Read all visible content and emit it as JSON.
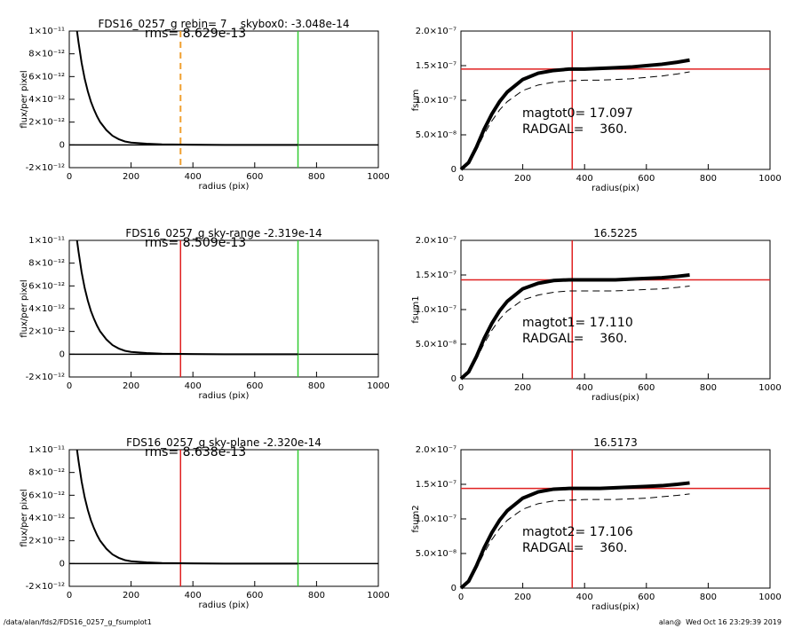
{
  "chart_data": [
    {
      "type": "scatter",
      "title": "FDS16_0257_g rebin= 7    skybox0: -3.048e-14",
      "annotations": [
        "rms= 8.629e-13"
      ],
      "xlabel": "radius (pix)",
      "ylabel": "flux/per pixel",
      "xlim": [
        0,
        1000
      ],
      "ylim": [
        -2e-12,
        1e-11
      ],
      "xticks": [
        0,
        200,
        400,
        600,
        800,
        1000
      ],
      "yticks": [
        {
          "value": -2e-12,
          "label": "-2×10⁻¹²"
        },
        0,
        {
          "value": 2e-12,
          "label": "2×10⁻¹²"
        },
        {
          "value": 4e-12,
          "label": "4×10⁻¹²"
        },
        {
          "value": 6e-12,
          "label": "6×10⁻¹²"
        },
        {
          "value": 8e-12,
          "label": "8×10⁻¹²"
        },
        {
          "value": 1e-11,
          "label": "1×10⁻¹¹"
        }
      ],
      "series": [
        {
          "color": "#000000",
          "x": [
            25,
            30,
            40,
            50,
            60,
            70,
            80,
            90,
            100,
            120,
            140,
            160,
            180,
            200,
            250,
            300,
            400,
            500,
            600,
            700,
            740
          ],
          "values": [
            1e-11,
            9e-12,
            7.2e-12,
            5.8e-12,
            4.7e-12,
            3.8e-12,
            3.1e-12,
            2.5e-12,
            2e-12,
            1.3e-12,
            8e-13,
            5e-13,
            3e-13,
            2e-13,
            1e-13,
            5e-14,
            2e-14,
            0,
            0,
            0,
            0
          ]
        }
      ],
      "vlines": [
        {
          "value": 360,
          "color": "#f0a030",
          "dashed": true
        },
        {
          "value": 740,
          "color": "#33cc33",
          "dashed": false
        }
      ]
    },
    {
      "type": "line",
      "xlabel": "radius(pix)",
      "ylabel": "fsum",
      "annotations": [
        "magtot0= 17.097",
        "RADGAL=    360."
      ],
      "xlim": [
        0,
        1000
      ],
      "ylim": [
        0,
        2e-07
      ],
      "xticks": [
        0,
        200,
        400,
        600,
        800,
        1000
      ],
      "yticks": [
        0,
        {
          "value": 5e-08,
          "label": "5.0×10⁻⁸"
        },
        {
          "value": 1e-07,
          "label": "1.0×10⁻⁷"
        },
        {
          "value": 1.5e-07,
          "label": "1.5×10⁻⁷"
        },
        {
          "value": 2e-07,
          "label": "2.0×10⁻⁷"
        }
      ],
      "series": [
        {
          "color": "#000000",
          "dashed": false,
          "x": [
            0,
            25,
            50,
            75,
            100,
            125,
            150,
            200,
            250,
            300,
            350,
            400,
            450,
            500,
            550,
            600,
            650,
            700,
            740
          ],
          "values": [
            0,
            1e-08,
            3.2e-08,
            5.8e-08,
            8e-08,
            9.8e-08,
            1.12e-07,
            1.3e-07,
            1.39e-07,
            1.43e-07,
            1.45e-07,
            1.45e-07,
            1.46e-07,
            1.47e-07,
            1.48e-07,
            1.5e-07,
            1.52e-07,
            1.55e-07,
            1.58e-07
          ]
        },
        {
          "color": "#000000",
          "dashed": true,
          "x": [
            0,
            25,
            50,
            75,
            100,
            125,
            150,
            200,
            250,
            300,
            350,
            400,
            450,
            500,
            550,
            600,
            650,
            700,
            740
          ],
          "values": [
            0,
            8e-09,
            2.8e-08,
            5.1e-08,
            7e-08,
            8.6e-08,
            9.8e-08,
            1.14e-07,
            1.22e-07,
            1.26e-07,
            1.28e-07,
            1.29e-07,
            1.29e-07,
            1.3e-07,
            1.31e-07,
            1.33e-07,
            1.35e-07,
            1.38e-07,
            1.41e-07
          ]
        }
      ],
      "hlines": [
        {
          "value": 1.45e-07,
          "color": "#e02020"
        }
      ],
      "vlines": [
        {
          "value": 360,
          "color": "#e02020",
          "dashed": false
        }
      ]
    },
    {
      "type": "scatter",
      "title": "FDS16_0257_g sky-range -2.319e-14",
      "annotations": [
        "rms= 8.509e-13"
      ],
      "xlabel": "radius (pix)",
      "ylabel": "flux/per pixel",
      "xlim": [
        0,
        1000
      ],
      "ylim": [
        -2e-12,
        1e-11
      ],
      "xticks": [
        0,
        200,
        400,
        600,
        800,
        1000
      ],
      "yticks": [
        {
          "value": -2e-12,
          "label": "-2×10⁻¹²"
        },
        0,
        {
          "value": 2e-12,
          "label": "2×10⁻¹²"
        },
        {
          "value": 4e-12,
          "label": "4×10⁻¹²"
        },
        {
          "value": 6e-12,
          "label": "6×10⁻¹²"
        },
        {
          "value": 8e-12,
          "label": "8×10⁻¹²"
        },
        {
          "value": 1e-11,
          "label": "1×10⁻¹¹"
        }
      ],
      "series": [
        {
          "color": "#000000",
          "x": [
            25,
            30,
            40,
            50,
            60,
            70,
            80,
            90,
            100,
            120,
            140,
            160,
            180,
            200,
            250,
            300,
            400,
            500,
            600,
            700,
            740
          ],
          "values": [
            1e-11,
            9e-12,
            7.2e-12,
            5.8e-12,
            4.7e-12,
            3.8e-12,
            3.1e-12,
            2.5e-12,
            2e-12,
            1.3e-12,
            8e-13,
            5e-13,
            3e-13,
            2e-13,
            1e-13,
            5e-14,
            2e-14,
            0,
            0,
            0,
            0
          ]
        }
      ],
      "vlines": [
        {
          "value": 360,
          "color": "#e02020",
          "dashed": false
        },
        {
          "value": 740,
          "color": "#33cc33",
          "dashed": false
        }
      ]
    },
    {
      "type": "line",
      "title": "16.5225",
      "xlabel": "radius(pix)",
      "ylabel": "fsum1",
      "annotations": [
        "magtot1= 17.110",
        "RADGAL=    360."
      ],
      "xlim": [
        0,
        1000
      ],
      "ylim": [
        0,
        2e-07
      ],
      "xticks": [
        0,
        200,
        400,
        600,
        800,
        1000
      ],
      "yticks": [
        0,
        {
          "value": 5e-08,
          "label": "5.0×10⁻⁸"
        },
        {
          "value": 1e-07,
          "label": "1.0×10⁻⁷"
        },
        {
          "value": 1.5e-07,
          "label": "1.5×10⁻⁷"
        },
        {
          "value": 2e-07,
          "label": "2.0×10⁻⁷"
        }
      ],
      "series": [
        {
          "color": "#000000",
          "dashed": false,
          "x": [
            0,
            25,
            50,
            75,
            100,
            125,
            150,
            200,
            250,
            300,
            350,
            400,
            450,
            500,
            550,
            600,
            650,
            700,
            740
          ],
          "values": [
            0,
            1e-08,
            3.2e-08,
            5.8e-08,
            8e-08,
            9.8e-08,
            1.12e-07,
            1.3e-07,
            1.38e-07,
            1.42e-07,
            1.43e-07,
            1.43e-07,
            1.43e-07,
            1.43e-07,
            1.44e-07,
            1.45e-07,
            1.46e-07,
            1.48e-07,
            1.5e-07
          ]
        },
        {
          "color": "#000000",
          "dashed": true,
          "x": [
            0,
            25,
            50,
            75,
            100,
            125,
            150,
            200,
            250,
            300,
            350,
            400,
            450,
            500,
            550,
            600,
            650,
            700,
            740
          ],
          "values": [
            0,
            8e-09,
            2.8e-08,
            5.1e-08,
            7e-08,
            8.6e-08,
            9.8e-08,
            1.14e-07,
            1.21e-07,
            1.25e-07,
            1.27e-07,
            1.27e-07,
            1.27e-07,
            1.27e-07,
            1.28e-07,
            1.29e-07,
            1.3e-07,
            1.32e-07,
            1.34e-07
          ]
        }
      ],
      "hlines": [
        {
          "value": 1.43e-07,
          "color": "#e02020"
        }
      ],
      "vlines": [
        {
          "value": 360,
          "color": "#e02020",
          "dashed": false
        }
      ]
    },
    {
      "type": "scatter",
      "title": "FDS16_0257_g sky-plane -2.320e-14",
      "annotations": [
        "rms= 8.638e-13"
      ],
      "xlabel": "radius (pix)",
      "ylabel": "flux/per pixel",
      "xlim": [
        0,
        1000
      ],
      "ylim": [
        -2e-12,
        1e-11
      ],
      "xticks": [
        0,
        200,
        400,
        600,
        800,
        1000
      ],
      "yticks": [
        {
          "value": -2e-12,
          "label": "-2×10⁻¹²"
        },
        0,
        {
          "value": 2e-12,
          "label": "2×10⁻¹²"
        },
        {
          "value": 4e-12,
          "label": "4×10⁻¹²"
        },
        {
          "value": 6e-12,
          "label": "6×10⁻¹²"
        },
        {
          "value": 8e-12,
          "label": "8×10⁻¹²"
        },
        {
          "value": 1e-11,
          "label": "1×10⁻¹¹"
        }
      ],
      "series": [
        {
          "color": "#000000",
          "x": [
            25,
            30,
            40,
            50,
            60,
            70,
            80,
            90,
            100,
            120,
            140,
            160,
            180,
            200,
            250,
            300,
            400,
            500,
            600,
            700,
            740
          ],
          "values": [
            1e-11,
            9e-12,
            7.2e-12,
            5.8e-12,
            4.7e-12,
            3.8e-12,
            3.1e-12,
            2.5e-12,
            2e-12,
            1.3e-12,
            8e-13,
            5e-13,
            3e-13,
            2e-13,
            1e-13,
            5e-14,
            2e-14,
            0,
            0,
            0,
            0
          ]
        }
      ],
      "vlines": [
        {
          "value": 360,
          "color": "#e02020",
          "dashed": false
        },
        {
          "value": 740,
          "color": "#33cc33",
          "dashed": false
        }
      ]
    },
    {
      "type": "line",
      "title": "16.5173",
      "xlabel": "radius(pix)",
      "ylabel": "fsum2",
      "annotations": [
        "magtot2= 17.106",
        "RADGAL=    360."
      ],
      "xlim": [
        0,
        1000
      ],
      "ylim": [
        0,
        2e-07
      ],
      "xticks": [
        0,
        200,
        400,
        600,
        800,
        1000
      ],
      "yticks": [
        0,
        {
          "value": 5e-08,
          "label": "5.0×10⁻⁸"
        },
        {
          "value": 1e-07,
          "label": "1.0×10⁻⁷"
        },
        {
          "value": 1.5e-07,
          "label": "1.5×10⁻⁷"
        },
        {
          "value": 2e-07,
          "label": "2.0×10⁻⁷"
        }
      ],
      "series": [
        {
          "color": "#000000",
          "dashed": false,
          "x": [
            0,
            25,
            50,
            75,
            100,
            125,
            150,
            200,
            250,
            300,
            350,
            400,
            450,
            500,
            550,
            600,
            650,
            700,
            740
          ],
          "values": [
            0,
            1e-08,
            3.2e-08,
            5.8e-08,
            8e-08,
            9.8e-08,
            1.12e-07,
            1.3e-07,
            1.39e-07,
            1.43e-07,
            1.44e-07,
            1.44e-07,
            1.44e-07,
            1.45e-07,
            1.46e-07,
            1.47e-07,
            1.48e-07,
            1.5e-07,
            1.52e-07
          ]
        },
        {
          "color": "#000000",
          "dashed": true,
          "x": [
            0,
            25,
            50,
            75,
            100,
            125,
            150,
            200,
            250,
            300,
            350,
            400,
            450,
            500,
            550,
            600,
            650,
            700,
            740
          ],
          "values": [
            0,
            8e-09,
            2.8e-08,
            5.1e-08,
            7e-08,
            8.6e-08,
            9.8e-08,
            1.14e-07,
            1.22e-07,
            1.26e-07,
            1.27e-07,
            1.28e-07,
            1.28e-07,
            1.28e-07,
            1.29e-07,
            1.3e-07,
            1.32e-07,
            1.34e-07,
            1.36e-07
          ]
        }
      ],
      "hlines": [
        {
          "value": 1.44e-07,
          "color": "#e02020"
        }
      ],
      "vlines": [
        {
          "value": 360,
          "color": "#e02020",
          "dashed": false
        }
      ]
    }
  ],
  "footer": {
    "left": "/data/alan/fds2/FDS16_0257_g_fsumplot1",
    "right": "alan@  Wed Oct 16 23:29:39 2019"
  }
}
